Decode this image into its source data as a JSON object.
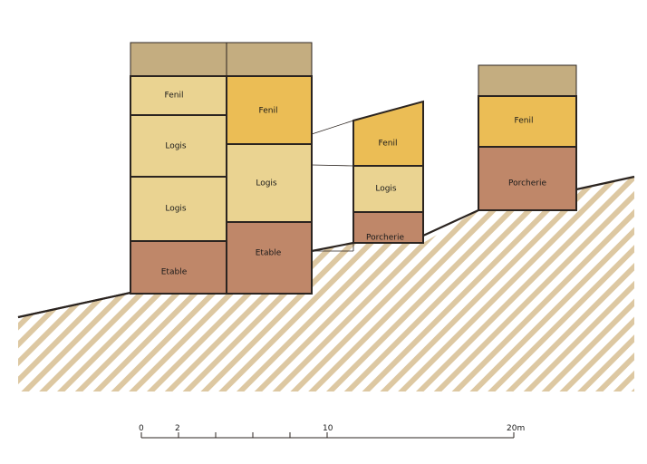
{
  "colors": {
    "roof": "#c4ad80",
    "fenil": "#ebbd55",
    "logis": "#ead391",
    "stable": "#bf8769",
    "hatch": "#ddc8a2",
    "outline": "#2b2420"
  },
  "buildings": {
    "a": {
      "floors": [
        "Etable",
        "Logis",
        "Logis",
        "Fenil"
      ]
    },
    "b": {
      "floors": [
        "Etable",
        "Logis",
        "Fenil"
      ]
    },
    "c": {
      "floors": [
        "Porcherie",
        "Logis",
        "Fenil"
      ]
    },
    "d": {
      "floors": [
        "Porcherie",
        "Fenil"
      ]
    }
  },
  "scale": {
    "labels": [
      "0",
      "2",
      "10",
      "20m"
    ]
  }
}
